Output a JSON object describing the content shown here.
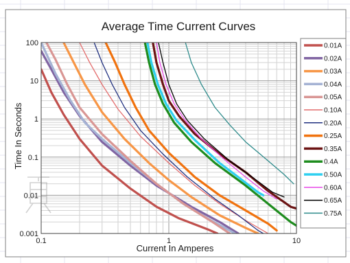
{
  "chart_data": {
    "type": "line",
    "title": "Average Time Current Curves",
    "xlabel": "Current In Amperes",
    "ylabel": "Time In Seconds",
    "x_scale": "log",
    "y_scale": "log",
    "xlim": [
      0.1,
      10
    ],
    "ylim": [
      0.001,
      100
    ],
    "x_ticks": [
      {
        "v": 0.1,
        "label": "0.1"
      },
      {
        "v": 1,
        "label": "1"
      },
      {
        "v": 10,
        "label": "10"
      }
    ],
    "y_ticks": [
      {
        "v": 100,
        "label": "100"
      },
      {
        "v": 10,
        "label": "10"
      },
      {
        "v": 1,
        "label": "1"
      },
      {
        "v": 0.1,
        "label": "0.1"
      },
      {
        "v": 0.01,
        "label": "0.01"
      },
      {
        "v": 0.001,
        "label": "0.001"
      }
    ],
    "grid": true,
    "legend_position": "right",
    "series": [
      {
        "name": "0.01A",
        "color": "#c0504d",
        "width": 3.2,
        "points": [
          [
            0.1,
            20
          ],
          [
            0.12,
            5
          ],
          [
            0.15,
            1.3
          ],
          [
            0.2,
            0.3
          ],
          [
            0.3,
            0.06
          ],
          [
            0.5,
            0.015
          ],
          [
            0.8,
            0.005
          ],
          [
            1.2,
            0.0025
          ],
          [
            2,
            0.0013
          ],
          [
            2.4,
            0.001
          ]
        ]
      },
      {
        "name": "0.02A",
        "color": "#8064a2",
        "width": 3.2,
        "points": [
          [
            0.1,
            60
          ],
          [
            0.12,
            20
          ],
          [
            0.15,
            5
          ],
          [
            0.2,
            1.2
          ],
          [
            0.3,
            0.25
          ],
          [
            0.5,
            0.06
          ],
          [
            0.8,
            0.018
          ],
          [
            1.5,
            0.005
          ],
          [
            2.5,
            0.002
          ],
          [
            3.5,
            0.001
          ]
        ]
      },
      {
        "name": "0.03A",
        "color": "#f79646",
        "width": 3.2,
        "points": [
          [
            0.15,
            100
          ],
          [
            0.18,
            30
          ],
          [
            0.22,
            8
          ],
          [
            0.3,
            1.5
          ],
          [
            0.45,
            0.3
          ],
          [
            0.7,
            0.07
          ],
          [
            1,
            0.025
          ],
          [
            1.5,
            0.009
          ],
          [
            2.5,
            0.003
          ],
          [
            4,
            0.0014
          ],
          [
            5,
            0.001
          ]
        ]
      },
      {
        "name": "0.04A",
        "color": "#a5b3d4",
        "width": 3.2,
        "points": [
          [
            0.1,
            100
          ],
          [
            0.11,
            50
          ],
          [
            0.13,
            15
          ],
          [
            0.17,
            3
          ],
          [
            0.22,
            0.8
          ],
          [
            0.3,
            0.3
          ],
          [
            0.5,
            0.07
          ],
          [
            0.8,
            0.02
          ],
          [
            1.3,
            0.006
          ],
          [
            2,
            0.0025
          ],
          [
            3,
            0.0012
          ],
          [
            3.3,
            0.001
          ]
        ]
      },
      {
        "name": "0.05A",
        "color": "#d99694",
        "width": 3.2,
        "points": [
          [
            0.11,
            100
          ],
          [
            0.13,
            35
          ],
          [
            0.16,
            8
          ],
          [
            0.2,
            2
          ],
          [
            0.3,
            0.4
          ],
          [
            0.5,
            0.08
          ],
          [
            0.8,
            0.02
          ],
          [
            1.3,
            0.006
          ],
          [
            2.2,
            0.002
          ],
          [
            3,
            0.001
          ]
        ]
      },
      {
        "name": "0.10A",
        "color": "#e36c6c",
        "width": 1.3,
        "points": [
          [
            0.2,
            100
          ],
          [
            0.24,
            30
          ],
          [
            0.3,
            8
          ],
          [
            0.4,
            1.8
          ],
          [
            0.6,
            0.35
          ],
          [
            1,
            0.07
          ],
          [
            1.6,
            0.018
          ],
          [
            2.5,
            0.006
          ],
          [
            4,
            0.0022
          ],
          [
            6,
            0.001
          ]
        ]
      },
      {
        "name": "0.20A",
        "color": "#1f2f7f",
        "width": 1.3,
        "points": [
          [
            0.26,
            100
          ],
          [
            0.3,
            30
          ],
          [
            0.36,
            8
          ],
          [
            0.45,
            2
          ],
          [
            0.6,
            0.5
          ],
          [
            0.9,
            0.12
          ],
          [
            1.4,
            0.03
          ],
          [
            2.3,
            0.008
          ],
          [
            3.5,
            0.003
          ],
          [
            5,
            0.0012
          ],
          [
            5.5,
            0.001
          ]
        ]
      },
      {
        "name": "0.25A",
        "color": "#f0720e",
        "width": 3.2,
        "points": [
          [
            0.32,
            100
          ],
          [
            0.38,
            30
          ],
          [
            0.45,
            8
          ],
          [
            0.55,
            2
          ],
          [
            0.7,
            0.5
          ],
          [
            1,
            0.13
          ],
          [
            1.6,
            0.03
          ],
          [
            2.5,
            0.01
          ],
          [
            4,
            0.004
          ],
          [
            6,
            0.0018
          ],
          [
            7,
            0.0012
          ]
        ]
      },
      {
        "name": "0.35A",
        "color": "#6b1313",
        "width": 3.2,
        "points": [
          [
            0.75,
            100
          ],
          [
            0.8,
            30
          ],
          [
            0.9,
            8
          ],
          [
            1,
            3
          ],
          [
            1.2,
            1.2
          ],
          [
            1.6,
            0.4
          ],
          [
            2.5,
            0.12
          ],
          [
            4,
            0.04
          ],
          [
            6,
            0.013
          ],
          [
            9,
            0.005
          ],
          [
            10,
            0.0045
          ]
        ]
      },
      {
        "name": "0.4A",
        "color": "#1e8c1e",
        "width": 3.2,
        "points": [
          [
            0.65,
            100
          ],
          [
            0.7,
            30
          ],
          [
            0.78,
            8
          ],
          [
            0.9,
            2.5
          ],
          [
            1.1,
            0.8
          ],
          [
            1.5,
            0.25
          ],
          [
            2.3,
            0.07
          ],
          [
            4,
            0.018
          ],
          [
            6,
            0.006
          ],
          [
            9,
            0.002
          ],
          [
            10,
            0.0016
          ]
        ]
      },
      {
        "name": "0.50A",
        "color": "#2ed0f0",
        "width": 3.2,
        "points": [
          [
            0.68,
            100
          ],
          [
            0.73,
            30
          ],
          [
            0.82,
            8
          ],
          [
            0.95,
            2.5
          ],
          [
            1.15,
            0.9
          ],
          [
            1.6,
            0.28
          ],
          [
            2.5,
            0.07
          ],
          [
            3.5,
            0.03
          ],
          [
            5,
            0.012
          ],
          [
            5.5,
            0.01
          ]
        ]
      },
      {
        "name": "0.60A",
        "color": "#e84ce8",
        "width": 1.3,
        "points": [
          [
            0.8,
            100
          ],
          [
            0.85,
            30
          ],
          [
            0.95,
            8
          ],
          [
            1.1,
            2.5
          ],
          [
            1.35,
            0.9
          ],
          [
            1.8,
            0.3
          ],
          [
            2.8,
            0.08
          ],
          [
            4,
            0.03
          ],
          [
            5.5,
            0.013
          ],
          [
            7,
            0.008
          ]
        ]
      },
      {
        "name": "0.65A",
        "color": "#000000",
        "width": 1.3,
        "points": [
          [
            0.83,
            100
          ],
          [
            0.9,
            30
          ],
          [
            1,
            8
          ],
          [
            1.15,
            2.5
          ],
          [
            1.4,
            0.9
          ],
          [
            1.9,
            0.3
          ],
          [
            3,
            0.08
          ],
          [
            4.5,
            0.03
          ],
          [
            6.5,
            0.012
          ],
          [
            8,
            0.009
          ]
        ]
      },
      {
        "name": "0.75A",
        "color": "#2e8b8b",
        "width": 1.3,
        "points": [
          [
            1.35,
            100
          ],
          [
            1.5,
            30
          ],
          [
            1.8,
            8
          ],
          [
            2.3,
            2
          ],
          [
            3,
            0.7
          ],
          [
            4,
            0.25
          ],
          [
            6,
            0.08
          ],
          [
            8,
            0.035
          ],
          [
            9.5,
            0.02
          ]
        ]
      }
    ]
  }
}
